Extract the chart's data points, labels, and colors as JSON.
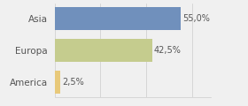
{
  "categories": [
    "America",
    "Europa",
    "Asia"
  ],
  "values": [
    2.5,
    42.5,
    55.0
  ],
  "bar_colors": [
    "#e8c97a",
    "#c5cc8e",
    "#7090bc"
  ],
  "labels": [
    "2,5%",
    "42,5%",
    "55,0%"
  ],
  "background_color": "#f0f0f0",
  "xlim": [
    0,
    68
  ],
  "bar_height": 0.72
}
